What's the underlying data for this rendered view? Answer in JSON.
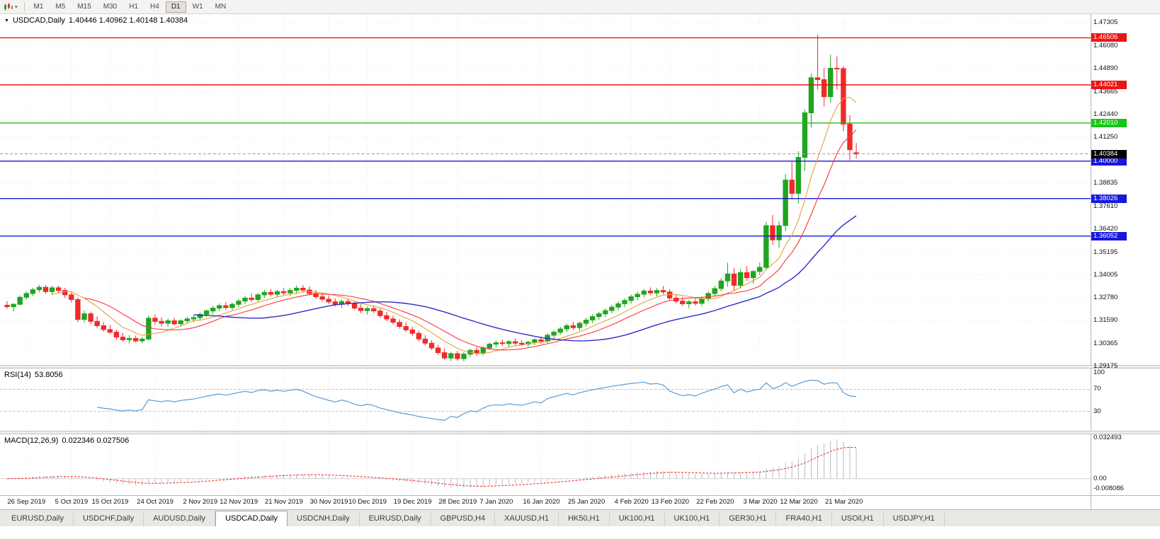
{
  "icons": {
    "chart_context": "▼",
    "caret": "▾"
  },
  "toolbar": {
    "timeframes": [
      {
        "label": "M1",
        "active": false
      },
      {
        "label": "M5",
        "active": false
      },
      {
        "label": "M15",
        "active": false
      },
      {
        "label": "M30",
        "active": false
      },
      {
        "label": "H1",
        "active": false
      },
      {
        "label": "H4",
        "active": false
      },
      {
        "label": "D1",
        "active": true
      },
      {
        "label": "W1",
        "active": false
      },
      {
        "label": "MN",
        "active": false
      }
    ]
  },
  "chart_header": {
    "symbol": "USDCAD,Daily",
    "ohlc": "1.40446 1.40962 1.40148 1.40384"
  },
  "rsi": {
    "name": "RSI(14)",
    "value": "53.8056",
    "scale": [
      "100",
      "70",
      "30"
    ],
    "levels": [
      70,
      30
    ],
    "color": "#5b9bd5"
  },
  "macd": {
    "name": "MACD(12,26,9)",
    "values": "0.022346 0.027506",
    "scale": [
      "0.032493",
      "0.00",
      "-0.008086"
    ],
    "histogram_color": "#bcbcbc",
    "signal_color": "#f02020"
  },
  "tabs": [
    {
      "label": "EURUSD,Daily",
      "active": false
    },
    {
      "label": "USDCHF,Daily",
      "active": false
    },
    {
      "label": "AUDUSD,Daily",
      "active": false
    },
    {
      "label": "USDCAD,Daily",
      "active": true
    },
    {
      "label": "USDCNH,Daily",
      "active": false
    },
    {
      "label": "EURUSD,Daily",
      "active": false
    },
    {
      "label": "GBPUSD,H4",
      "active": false
    },
    {
      "label": "XAUUSD,H1",
      "active": false
    },
    {
      "label": "HK50,H1",
      "active": false
    },
    {
      "label": "UK100,H1",
      "active": false
    },
    {
      "label": "UK100,H1",
      "active": false
    },
    {
      "label": "GER30,H1",
      "active": false
    },
    {
      "label": "FRA40,H1",
      "active": false
    },
    {
      "label": "USOil,H1",
      "active": false
    },
    {
      "label": "USDJPY,H1",
      "active": false
    }
  ],
  "chart_data": {
    "type": "candlestick",
    "title": "USDCAD,Daily",
    "up_color": "#1fa51f",
    "down_color": "#f02a2a",
    "grid_color": "#e6e6e6",
    "y_axis_ticks": [
      "1.47305",
      "1.46080",
      "1.44890",
      "1.43665",
      "1.42440",
      "1.41250",
      "1.40025",
      "1.38835",
      "1.37610",
      "1.36420",
      "1.35195",
      "1.34005",
      "1.32780",
      "1.31590",
      "1.30365",
      "1.29175"
    ],
    "x_tick_labels": [
      "26 Sep 2019",
      "5 Oct 2019",
      "15 Oct 2019",
      "24 Oct 2019",
      "2 Nov 2019",
      "12 Nov 2019",
      "21 Nov 2019",
      "30 Nov 2019",
      "10 Dec 2019",
      "19 Dec 2019",
      "28 Dec 2019",
      "7 Jan 2020",
      "16 Jan 2020",
      "25 Jan 2020",
      "4 Feb 2020",
      "13 Feb 2020",
      "22 Feb 2020",
      "3 Mar 2020",
      "12 Mar 2020",
      "21 Mar 2020"
    ],
    "moving_averages": [
      {
        "name": "ma-fast",
        "period": 8,
        "color": "#e2a13c"
      },
      {
        "name": "ma-mid",
        "period": 13,
        "color": "#ff3232"
      },
      {
        "name": "ma-slow",
        "period": 30,
        "color": "#2d2dc8"
      }
    ],
    "price_lines": [
      {
        "label": "1.46506",
        "price": 1.46506,
        "color": "#ea1515"
      },
      {
        "label": "1.44021",
        "price": 1.44021,
        "color": "#ea1515"
      },
      {
        "label": "1.42010",
        "price": 1.4201,
        "color": "#17c517"
      },
      {
        "label": "1.40000",
        "price": 1.4,
        "color": "#1717dd"
      },
      {
        "label": "1.38026",
        "price": 1.38026,
        "color": "#1717dd"
      },
      {
        "label": "1.36052",
        "price": 1.36052,
        "color": "#1717dd"
      }
    ],
    "current_price": {
      "label": "1.40384",
      "price": 1.40384,
      "badge_color": "#000000",
      "line_color": "#999999"
    },
    "candles": [
      [
        1.324,
        1.3262,
        1.3222,
        1.3232
      ],
      [
        1.3232,
        1.325,
        1.3208,
        1.3245
      ],
      [
        1.3245,
        1.3292,
        1.3238,
        1.3282
      ],
      [
        1.3282,
        1.3312,
        1.3268,
        1.3302
      ],
      [
        1.3302,
        1.3332,
        1.3288,
        1.3322
      ],
      [
        1.3322,
        1.3348,
        1.3308,
        1.3335
      ],
      [
        1.3335,
        1.3346,
        1.33,
        1.3312
      ],
      [
        1.3312,
        1.3342,
        1.3294,
        1.3332
      ],
      [
        1.3332,
        1.3344,
        1.3304,
        1.3318
      ],
      [
        1.3318,
        1.3332,
        1.3278,
        1.3295
      ],
      [
        1.3295,
        1.3307,
        1.3254,
        1.327
      ],
      [
        1.327,
        1.328,
        1.315,
        1.3165
      ],
      [
        1.3165,
        1.3212,
        1.3148,
        1.3195
      ],
      [
        1.3195,
        1.3206,
        1.314,
        1.3155
      ],
      [
        1.3155,
        1.3182,
        1.312,
        1.3132
      ],
      [
        1.3132,
        1.3152,
        1.31,
        1.3112
      ],
      [
        1.3112,
        1.3136,
        1.3088,
        1.3098
      ],
      [
        1.3098,
        1.3112,
        1.3058,
        1.3072
      ],
      [
        1.3072,
        1.3094,
        1.3048,
        1.3058
      ],
      [
        1.3058,
        1.3082,
        1.3038,
        1.3065
      ],
      [
        1.3065,
        1.308,
        1.3042,
        1.3052
      ],
      [
        1.3052,
        1.3072,
        1.3038,
        1.3062
      ],
      [
        1.3062,
        1.3186,
        1.3054,
        1.3172
      ],
      [
        1.3172,
        1.3192,
        1.3138,
        1.3155
      ],
      [
        1.3155,
        1.3176,
        1.3128,
        1.3145
      ],
      [
        1.3145,
        1.317,
        1.3126,
        1.3158
      ],
      [
        1.3158,
        1.3174,
        1.3134,
        1.3142
      ],
      [
        1.3142,
        1.3166,
        1.3128,
        1.3158
      ],
      [
        1.3158,
        1.318,
        1.3144,
        1.3168
      ],
      [
        1.3168,
        1.3186,
        1.315,
        1.3175
      ],
      [
        1.3175,
        1.3202,
        1.316,
        1.3192
      ],
      [
        1.3192,
        1.322,
        1.3178,
        1.321
      ],
      [
        1.321,
        1.3236,
        1.3194,
        1.3225
      ],
      [
        1.3225,
        1.325,
        1.3208,
        1.3238
      ],
      [
        1.3238,
        1.3256,
        1.3216,
        1.3228
      ],
      [
        1.3228,
        1.3254,
        1.3214,
        1.3245
      ],
      [
        1.3245,
        1.3274,
        1.323,
        1.3262
      ],
      [
        1.3262,
        1.329,
        1.3246,
        1.3278
      ],
      [
        1.3278,
        1.3302,
        1.3258,
        1.327
      ],
      [
        1.327,
        1.3304,
        1.3256,
        1.3295
      ],
      [
        1.3295,
        1.332,
        1.3278,
        1.3308
      ],
      [
        1.3308,
        1.3326,
        1.3286,
        1.3298
      ],
      [
        1.3298,
        1.3322,
        1.3284,
        1.3312
      ],
      [
        1.3312,
        1.3332,
        1.3294,
        1.3305
      ],
      [
        1.3305,
        1.333,
        1.3288,
        1.3318
      ],
      [
        1.3318,
        1.3344,
        1.33,
        1.333
      ],
      [
        1.333,
        1.3346,
        1.3308,
        1.332
      ],
      [
        1.332,
        1.334,
        1.3294,
        1.3302
      ],
      [
        1.3302,
        1.332,
        1.3274,
        1.3285
      ],
      [
        1.3285,
        1.3302,
        1.326,
        1.3272
      ],
      [
        1.3272,
        1.3292,
        1.3246,
        1.3258
      ],
      [
        1.3258,
        1.3276,
        1.3234,
        1.3245
      ],
      [
        1.3245,
        1.327,
        1.3226,
        1.326
      ],
      [
        1.326,
        1.3274,
        1.3236,
        1.3248
      ],
      [
        1.3248,
        1.3262,
        1.3214,
        1.3225
      ],
      [
        1.3225,
        1.3246,
        1.3198,
        1.3212
      ],
      [
        1.3212,
        1.3234,
        1.319,
        1.3222
      ],
      [
        1.3222,
        1.324,
        1.3198,
        1.321
      ],
      [
        1.321,
        1.3224,
        1.3174,
        1.3185
      ],
      [
        1.3185,
        1.3206,
        1.3156,
        1.3168
      ],
      [
        1.3168,
        1.3186,
        1.3138,
        1.315
      ],
      [
        1.315,
        1.3166,
        1.3116,
        1.3128
      ],
      [
        1.3128,
        1.315,
        1.3098,
        1.311
      ],
      [
        1.311,
        1.3126,
        1.3078,
        1.3092
      ],
      [
        1.3092,
        1.3106,
        1.305,
        1.3062
      ],
      [
        1.3062,
        1.3082,
        1.3028,
        1.304
      ],
      [
        1.304,
        1.3056,
        1.3004,
        1.3015
      ],
      [
        1.3015,
        1.3032,
        1.2978,
        1.299
      ],
      [
        1.299,
        1.3012,
        1.295,
        1.2962
      ],
      [
        1.2962,
        1.2994,
        1.2946,
        1.2985
      ],
      [
        1.2985,
        1.3,
        1.2948,
        1.2958
      ],
      [
        1.2958,
        1.2992,
        1.2944,
        1.2982
      ],
      [
        1.2982,
        1.3012,
        1.2966,
        1.3002
      ],
      [
        1.3002,
        1.302,
        1.2974,
        1.2988
      ],
      [
        1.2988,
        1.3024,
        1.2976,
        1.3015
      ],
      [
        1.3015,
        1.3044,
        1.3004,
        1.3035
      ],
      [
        1.3035,
        1.3054,
        1.3018,
        1.3042
      ],
      [
        1.3042,
        1.306,
        1.3026,
        1.3038
      ],
      [
        1.3038,
        1.3056,
        1.302,
        1.3048
      ],
      [
        1.3048,
        1.3064,
        1.303,
        1.304
      ],
      [
        1.304,
        1.3056,
        1.3024,
        1.3035
      ],
      [
        1.3035,
        1.3052,
        1.302,
        1.3045
      ],
      [
        1.3045,
        1.3066,
        1.303,
        1.3058
      ],
      [
        1.3058,
        1.3076,
        1.3038,
        1.305
      ],
      [
        1.305,
        1.3092,
        1.304,
        1.3082
      ],
      [
        1.3082,
        1.311,
        1.3066,
        1.3098
      ],
      [
        1.3098,
        1.3126,
        1.3084,
        1.3115
      ],
      [
        1.3115,
        1.3144,
        1.3098,
        1.3132
      ],
      [
        1.3132,
        1.3152,
        1.3108,
        1.3122
      ],
      [
        1.3122,
        1.3154,
        1.3106,
        1.3145
      ],
      [
        1.3145,
        1.3174,
        1.3128,
        1.3162
      ],
      [
        1.3162,
        1.3192,
        1.3146,
        1.318
      ],
      [
        1.318,
        1.3206,
        1.3164,
        1.3195
      ],
      [
        1.3195,
        1.3224,
        1.3178,
        1.3212
      ],
      [
        1.3212,
        1.3242,
        1.3196,
        1.323
      ],
      [
        1.323,
        1.326,
        1.3214,
        1.3248
      ],
      [
        1.3248,
        1.3276,
        1.323,
        1.3265
      ],
      [
        1.3265,
        1.3296,
        1.3248,
        1.3285
      ],
      [
        1.3285,
        1.3312,
        1.3266,
        1.3298
      ],
      [
        1.3298,
        1.3326,
        1.328,
        1.3315
      ],
      [
        1.3315,
        1.3334,
        1.3294,
        1.3305
      ],
      [
        1.3305,
        1.333,
        1.3286,
        1.3318
      ],
      [
        1.3318,
        1.3342,
        1.3298,
        1.331
      ],
      [
        1.331,
        1.3324,
        1.3266,
        1.3278
      ],
      [
        1.3278,
        1.3296,
        1.325,
        1.3262
      ],
      [
        1.3262,
        1.3284,
        1.3236,
        1.3248
      ],
      [
        1.3248,
        1.327,
        1.3224,
        1.3258
      ],
      [
        1.3258,
        1.328,
        1.3238,
        1.325
      ],
      [
        1.325,
        1.3286,
        1.3236,
        1.3275
      ],
      [
        1.3275,
        1.3314,
        1.326,
        1.3302
      ],
      [
        1.3302,
        1.3342,
        1.3288,
        1.3328
      ],
      [
        1.3328,
        1.3384,
        1.3314,
        1.3368
      ],
      [
        1.3368,
        1.3464,
        1.3338,
        1.3405
      ],
      [
        1.3405,
        1.3436,
        1.3316,
        1.3345
      ],
      [
        1.3345,
        1.343,
        1.3328,
        1.3412
      ],
      [
        1.3412,
        1.3446,
        1.3368,
        1.3385
      ],
      [
        1.3385,
        1.3426,
        1.3354,
        1.3418
      ],
      [
        1.3418,
        1.3466,
        1.3398,
        1.344
      ],
      [
        1.344,
        1.3682,
        1.3428,
        1.366
      ],
      [
        1.366,
        1.3716,
        1.3558,
        1.3585
      ],
      [
        1.3585,
        1.3682,
        1.3544,
        1.366
      ],
      [
        1.366,
        1.3932,
        1.363,
        1.39
      ],
      [
        1.39,
        1.3996,
        1.3798,
        1.383
      ],
      [
        1.383,
        1.4052,
        1.3778,
        1.402
      ],
      [
        1.402,
        1.4272,
        1.3948,
        1.4255
      ],
      [
        1.4255,
        1.4462,
        1.4176,
        1.444
      ],
      [
        1.444,
        1.4668,
        1.4378,
        1.443
      ],
      [
        1.443,
        1.4492,
        1.4288,
        1.434
      ],
      [
        1.434,
        1.4562,
        1.4308,
        1.449
      ],
      [
        1.449,
        1.4552,
        1.4378,
        1.4488
      ],
      [
        1.4488,
        1.4502,
        1.4158,
        1.4195
      ],
      [
        1.4195,
        1.4242,
        1.4004,
        1.406
      ],
      [
        1.40446,
        1.40962,
        1.40148,
        1.40384
      ]
    ]
  }
}
